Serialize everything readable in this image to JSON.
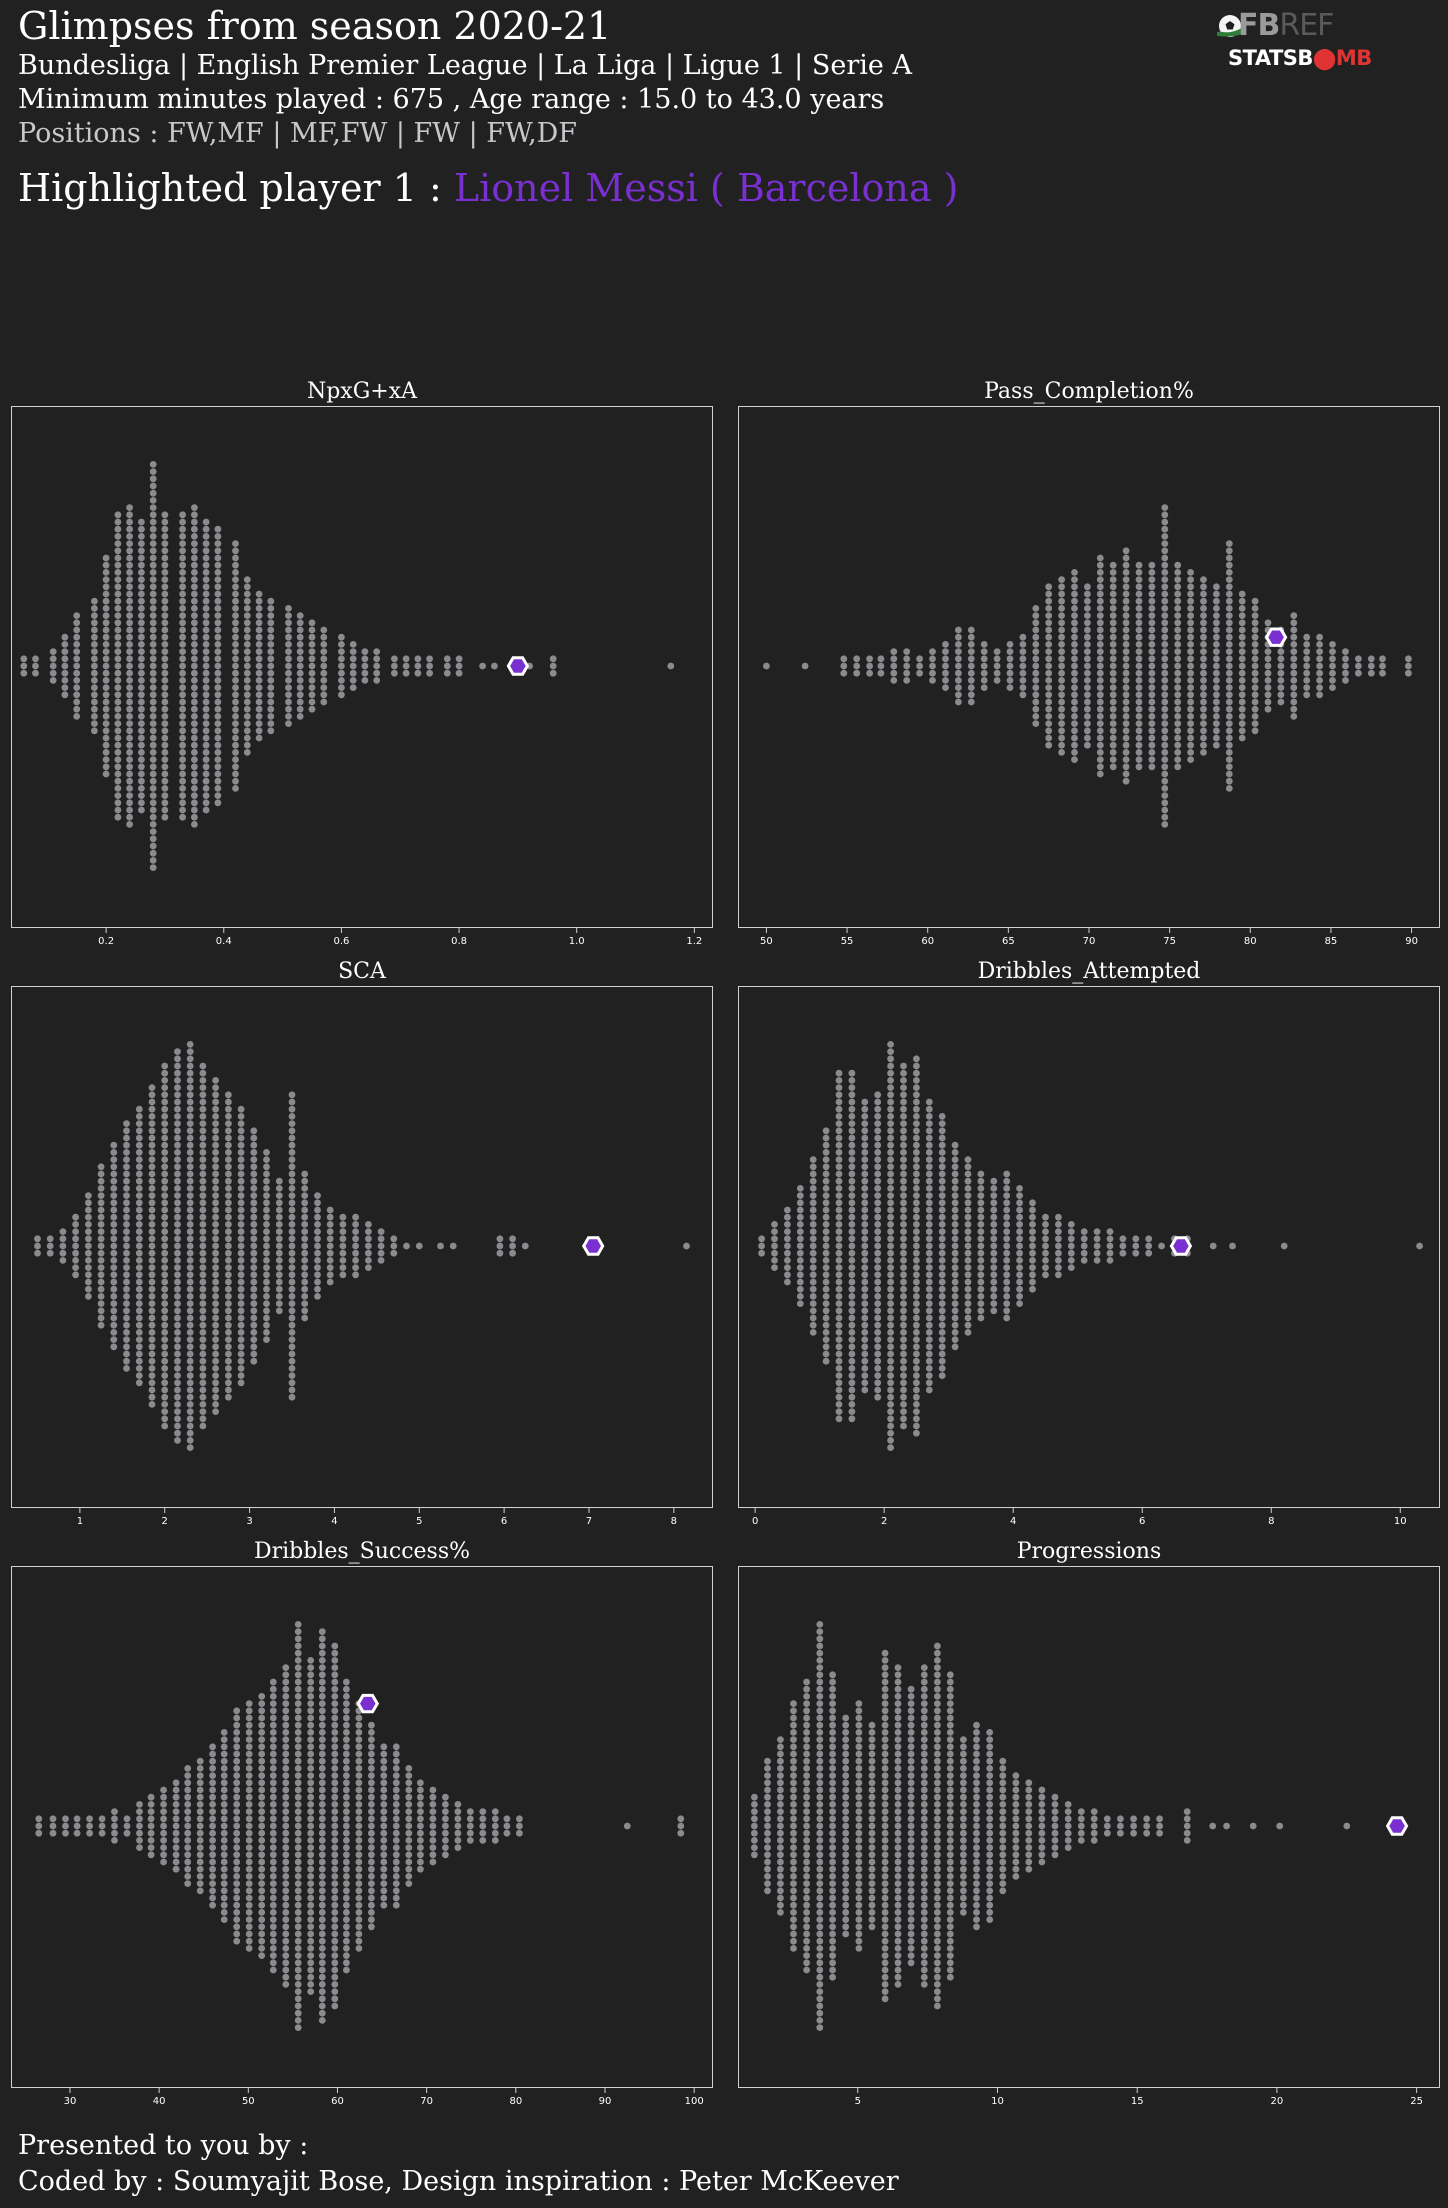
{
  "header": {
    "title": "Glimpses from season 2020-21",
    "leagues": "Bundesliga | English Premier League | La Liga | Ligue 1 | Serie A",
    "filters": "Minimum minutes played : 675 ,  Age range : 15.0 to 43.0 years",
    "positions": "Positions : FW,MF | MF,FW | FW | FW,DF",
    "highlight_prefix": "Highlighted player 1 : ",
    "highlight_player": "Lionel Messi ( Barcelona )"
  },
  "logos": {
    "fbref_fb": "FB",
    "fbref_ref": "REF",
    "statsbomb_a": "STATSB",
    "statsbomb_b": "⬤MB"
  },
  "colors": {
    "background": "#212121",
    "dot": "#8a8a8f",
    "highlight": "#7a2fd0",
    "highlight_edge": "#ffffff",
    "frame": "#d0d0d0"
  },
  "footer": {
    "presented": "Presented to you by :",
    "coded": "Coded by : Soumyajit Bose, Design inspiration : Peter McKeever"
  },
  "chart_data": [
    {
      "type": "scatter",
      "style": "beeswarm",
      "title": "NpxG+xA",
      "xlim": [
        0.04,
        1.23
      ],
      "ticks": [
        0.2,
        0.4,
        0.6,
        0.8,
        1.0,
        1.2
      ],
      "tick_labels": [
        "0.2",
        "0.4",
        "0.6",
        "0.8",
        "1.0",
        "1.2"
      ],
      "highlight": {
        "player": "Lionel Messi ( Barcelona )",
        "value": 0.9,
        "offset_rows": 0
      },
      "bins": [
        [
          0.06,
          3
        ],
        [
          0.08,
          3
        ],
        [
          0.11,
          5
        ],
        [
          0.13,
          9
        ],
        [
          0.15,
          15
        ],
        [
          0.18,
          19
        ],
        [
          0.2,
          31
        ],
        [
          0.22,
          43
        ],
        [
          0.24,
          45
        ],
        [
          0.26,
          41
        ],
        [
          0.28,
          57
        ],
        [
          0.3,
          43
        ],
        [
          0.33,
          43
        ],
        [
          0.35,
          45
        ],
        [
          0.37,
          41
        ],
        [
          0.39,
          39
        ],
        [
          0.42,
          35
        ],
        [
          0.44,
          25
        ],
        [
          0.46,
          21
        ],
        [
          0.48,
          19
        ],
        [
          0.51,
          17
        ],
        [
          0.53,
          15
        ],
        [
          0.55,
          13
        ],
        [
          0.57,
          11
        ],
        [
          0.6,
          9
        ],
        [
          0.62,
          7
        ],
        [
          0.64,
          5
        ],
        [
          0.66,
          5
        ],
        [
          0.69,
          3
        ],
        [
          0.71,
          3
        ],
        [
          0.73,
          3
        ],
        [
          0.75,
          3
        ],
        [
          0.78,
          3
        ],
        [
          0.8,
          3
        ],
        [
          0.84,
          1
        ],
        [
          0.86,
          1
        ],
        [
          0.92,
          1
        ],
        [
          0.96,
          3
        ],
        [
          1.16,
          1
        ]
      ]
    },
    {
      "type": "scatter",
      "style": "beeswarm",
      "title": "Pass_Completion%",
      "xlim": [
        48.3,
        91.7
      ],
      "ticks": [
        50,
        55,
        60,
        65,
        70,
        75,
        80,
        85,
        90
      ],
      "tick_labels": [
        "50",
        "55",
        "60",
        "65",
        "70",
        "75",
        "80",
        "85",
        "90"
      ],
      "highlight": {
        "player": "Lionel Messi ( Barcelona )",
        "value": 81.6,
        "offset_rows": -4
      },
      "bins": [
        [
          50,
          1
        ],
        [
          52.4,
          1
        ],
        [
          54.8,
          3
        ],
        [
          55.6,
          3
        ],
        [
          56.4,
          3
        ],
        [
          57.1,
          3
        ],
        [
          57.9,
          5
        ],
        [
          58.7,
          5
        ],
        [
          59.5,
          3
        ],
        [
          60.3,
          5
        ],
        [
          61.1,
          7
        ],
        [
          61.9,
          11
        ],
        [
          62.7,
          11
        ],
        [
          63.5,
          7
        ],
        [
          64.3,
          5
        ],
        [
          65.1,
          7
        ],
        [
          65.9,
          9
        ],
        [
          66.7,
          17
        ],
        [
          67.5,
          23
        ],
        [
          68.3,
          25
        ],
        [
          69.1,
          27
        ],
        [
          69.9,
          23
        ],
        [
          70.7,
          31
        ],
        [
          71.5,
          29
        ],
        [
          72.3,
          33
        ],
        [
          73.1,
          29
        ],
        [
          73.9,
          29
        ],
        [
          74.7,
          45
        ],
        [
          75.5,
          29
        ],
        [
          76.3,
          27
        ],
        [
          77.1,
          25
        ],
        [
          77.9,
          23
        ],
        [
          78.7,
          35
        ],
        [
          79.5,
          21
        ],
        [
          80.3,
          19
        ],
        [
          81.1,
          13
        ],
        [
          81.9,
          11
        ],
        [
          82.7,
          15
        ],
        [
          83.5,
          9
        ],
        [
          84.3,
          9
        ],
        [
          85.1,
          7
        ],
        [
          85.9,
          5
        ],
        [
          86.7,
          3
        ],
        [
          87.5,
          3
        ],
        [
          88.2,
          3
        ],
        [
          89.8,
          3
        ]
      ]
    },
    {
      "type": "scatter",
      "style": "beeswarm",
      "title": "SCA",
      "xlim": [
        0.2,
        8.45
      ],
      "ticks": [
        1,
        2,
        3,
        4,
        5,
        6,
        7,
        8
      ],
      "tick_labels": [
        "1",
        "2",
        "3",
        "4",
        "5",
        "6",
        "7",
        "8"
      ],
      "highlight": {
        "player": "Lionel Messi ( Barcelona )",
        "value": 7.05,
        "offset_rows": 0
      },
      "bins": [
        [
          0.5,
          3
        ],
        [
          0.65,
          3
        ],
        [
          0.8,
          5
        ],
        [
          0.95,
          9
        ],
        [
          1.1,
          15
        ],
        [
          1.25,
          23
        ],
        [
          1.4,
          29
        ],
        [
          1.55,
          35
        ],
        [
          1.7,
          39
        ],
        [
          1.85,
          45
        ],
        [
          2.0,
          51
        ],
        [
          2.15,
          55
        ],
        [
          2.3,
          57
        ],
        [
          2.45,
          51
        ],
        [
          2.6,
          47
        ],
        [
          2.75,
          43
        ],
        [
          2.9,
          39
        ],
        [
          3.05,
          33
        ],
        [
          3.2,
          27
        ],
        [
          3.35,
          19
        ],
        [
          3.5,
          43
        ],
        [
          3.65,
          21
        ],
        [
          3.8,
          15
        ],
        [
          3.95,
          11
        ],
        [
          4.1,
          9
        ],
        [
          4.25,
          9
        ],
        [
          4.4,
          7
        ],
        [
          4.55,
          5
        ],
        [
          4.7,
          3
        ],
        [
          4.85,
          1
        ],
        [
          5.0,
          1
        ],
        [
          5.25,
          1
        ],
        [
          5.4,
          1
        ],
        [
          5.95,
          3
        ],
        [
          6.1,
          3
        ],
        [
          6.25,
          1
        ],
        [
          8.15,
          1
        ]
      ]
    },
    {
      "type": "scatter",
      "style": "beeswarm",
      "title": "Dribbles_Attempted",
      "xlim": [
        -0.25,
        10.6
      ],
      "ticks": [
        0,
        2,
        4,
        6,
        8,
        10
      ],
      "tick_labels": [
        "0",
        "2",
        "4",
        "6",
        "8",
        "10"
      ],
      "highlight": {
        "player": "Lionel Messi ( Barcelona )",
        "value": 6.6,
        "offset_rows": 0
      },
      "bins": [
        [
          0.1,
          3
        ],
        [
          0.3,
          7
        ],
        [
          0.5,
          11
        ],
        [
          0.7,
          17
        ],
        [
          0.9,
          25
        ],
        [
          1.1,
          33
        ],
        [
          1.3,
          49
        ],
        [
          1.5,
          49
        ],
        [
          1.7,
          41
        ],
        [
          1.9,
          43
        ],
        [
          2.1,
          57
        ],
        [
          2.3,
          51
        ],
        [
          2.5,
          53
        ],
        [
          2.7,
          41
        ],
        [
          2.9,
          37
        ],
        [
          3.1,
          29
        ],
        [
          3.3,
          25
        ],
        [
          3.5,
          21
        ],
        [
          3.7,
          19
        ],
        [
          3.9,
          21
        ],
        [
          4.1,
          17
        ],
        [
          4.3,
          13
        ],
        [
          4.5,
          9
        ],
        [
          4.7,
          9
        ],
        [
          4.9,
          7
        ],
        [
          5.1,
          5
        ],
        [
          5.3,
          5
        ],
        [
          5.5,
          5
        ],
        [
          5.7,
          3
        ],
        [
          5.9,
          3
        ],
        [
          6.1,
          3
        ],
        [
          6.3,
          1
        ],
        [
          6.5,
          3
        ],
        [
          6.7,
          3
        ],
        [
          7.1,
          1
        ],
        [
          7.4,
          1
        ],
        [
          8.2,
          1
        ],
        [
          10.3,
          1
        ]
      ]
    },
    {
      "type": "scatter",
      "style": "beeswarm",
      "title": "Dribbles_Success%",
      "xlim": [
        23.5,
        102
      ],
      "ticks": [
        30,
        40,
        50,
        60,
        70,
        80,
        90,
        100
      ],
      "tick_labels": [
        "30",
        "40",
        "50",
        "60",
        "70",
        "80",
        "90",
        "100"
      ],
      "highlight": {
        "player": "Lionel Messi ( Barcelona )",
        "value": 63.4,
        "offset_rows": -17
      },
      "bins": [
        [
          26.5,
          3
        ],
        [
          28.1,
          3
        ],
        [
          29.5,
          3
        ],
        [
          30.8,
          3
        ],
        [
          32.2,
          3
        ],
        [
          33.6,
          3
        ],
        [
          35,
          5
        ],
        [
          36.4,
          3
        ],
        [
          37.8,
          7
        ],
        [
          39.1,
          9
        ],
        [
          40.5,
          11
        ],
        [
          41.9,
          13
        ],
        [
          43.2,
          17
        ],
        [
          44.6,
          19
        ],
        [
          46,
          23
        ],
        [
          47.3,
          27
        ],
        [
          48.7,
          33
        ],
        [
          50.1,
          35
        ],
        [
          51.5,
          37
        ],
        [
          52.8,
          41
        ],
        [
          54.2,
          45
        ],
        [
          55.6,
          57
        ],
        [
          57,
          47
        ],
        [
          58.3,
          55
        ],
        [
          59.7,
          51
        ],
        [
          61,
          41
        ],
        [
          62.4,
          35
        ],
        [
          63.8,
          29
        ],
        [
          65.2,
          23
        ],
        [
          66.6,
          23
        ],
        [
          68,
          17
        ],
        [
          69.3,
          13
        ],
        [
          70.7,
          11
        ],
        [
          72.1,
          9
        ],
        [
          73.5,
          7
        ],
        [
          74.9,
          5
        ],
        [
          76.3,
          5
        ],
        [
          77.7,
          5
        ],
        [
          79,
          3
        ],
        [
          80.4,
          3
        ],
        [
          92.5,
          1
        ],
        [
          98.5,
          3
        ]
      ]
    },
    {
      "type": "scatter",
      "style": "beeswarm",
      "title": "Progressions",
      "xlim": [
        0.75,
        25.8
      ],
      "ticks": [
        5,
        10,
        15,
        20,
        25
      ],
      "tick_labels": [
        "5",
        "10",
        "15",
        "20",
        "25"
      ],
      "highlight": {
        "player": "Lionel Messi ( Barcelona )",
        "value": 24.3,
        "offset_rows": 0
      },
      "bins": [
        [
          1.3,
          9
        ],
        [
          1.77,
          19
        ],
        [
          2.23,
          25
        ],
        [
          2.7,
          35
        ],
        [
          3.17,
          41
        ],
        [
          3.64,
          57
        ],
        [
          4.1,
          43
        ],
        [
          4.57,
          31
        ],
        [
          5.04,
          35
        ],
        [
          5.51,
          29
        ],
        [
          5.98,
          49
        ],
        [
          6.44,
          45
        ],
        [
          6.91,
          39
        ],
        [
          7.38,
          45
        ],
        [
          7.85,
          51
        ],
        [
          8.31,
          43
        ],
        [
          8.78,
          25
        ],
        [
          9.25,
          29
        ],
        [
          9.72,
          27
        ],
        [
          10.19,
          19
        ],
        [
          10.66,
          15
        ],
        [
          11.12,
          13
        ],
        [
          11.59,
          11
        ],
        [
          12.06,
          9
        ],
        [
          12.53,
          7
        ],
        [
          13,
          5
        ],
        [
          13.46,
          5
        ],
        [
          13.93,
          3
        ],
        [
          14.4,
          3
        ],
        [
          14.87,
          3
        ],
        [
          15.34,
          3
        ],
        [
          15.8,
          3
        ],
        [
          16.79,
          5
        ],
        [
          17.7,
          1
        ],
        [
          18.2,
          1
        ],
        [
          19.15,
          1
        ],
        [
          20.1,
          1
        ],
        [
          22.5,
          1
        ]
      ]
    }
  ]
}
